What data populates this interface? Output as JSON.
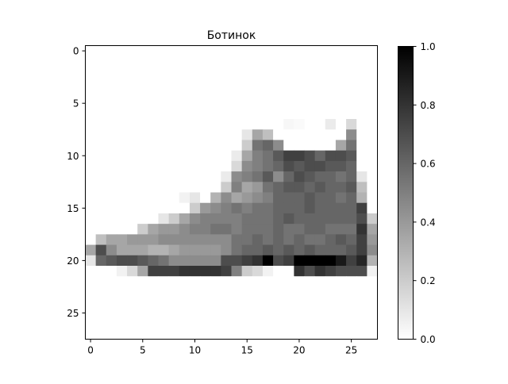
{
  "chart_data": {
    "type": "heatmap",
    "title": "Ботинок",
    "xlabel": "",
    "ylabel": "",
    "rows": 28,
    "cols": 28,
    "xlim": [
      -0.5,
      27.5
    ],
    "ylim": [
      27.5,
      -0.5
    ],
    "x_ticks": [
      0,
      5,
      10,
      15,
      20,
      25
    ],
    "y_ticks": [
      0,
      5,
      10,
      15,
      20,
      25
    ],
    "colormap": "gray_r",
    "colorbar": {
      "range": [
        0.0,
        1.0
      ],
      "ticks": [
        "0.0",
        "0.2",
        "0.4",
        "0.6",
        "0.8",
        "1.0"
      ],
      "low_color": "#ffffff",
      "high_color": "#000000"
    },
    "grid": false,
    "values": [
      [
        0,
        0,
        0,
        0,
        0,
        0,
        0,
        0,
        0,
        0,
        0,
        0,
        0,
        0,
        0,
        0,
        0,
        0,
        0,
        0,
        0,
        0,
        0,
        0,
        0,
        0,
        0,
        0
      ],
      [
        0,
        0,
        0,
        0,
        0,
        0,
        0,
        0,
        0,
        0,
        0,
        0,
        0,
        0,
        0,
        0,
        0,
        0,
        0,
        0,
        0,
        0,
        0,
        0,
        0,
        0,
        0,
        0
      ],
      [
        0,
        0,
        0,
        0,
        0,
        0,
        0,
        0,
        0,
        0,
        0,
        0,
        0,
        0,
        0,
        0,
        0,
        0,
        0,
        0,
        0,
        0,
        0,
        0,
        0,
        0,
        0,
        0
      ],
      [
        0,
        0,
        0,
        0,
        0,
        0,
        0,
        0,
        0,
        0,
        0,
        0,
        0,
        0,
        0,
        0,
        0,
        0,
        0,
        0,
        0,
        0,
        0,
        0,
        0,
        0,
        0,
        0
      ],
      [
        0,
        0,
        0,
        0,
        0,
        0,
        0,
        0,
        0,
        0,
        0,
        0,
        0,
        0,
        0,
        0,
        0,
        0,
        0,
        0,
        0,
        0,
        0,
        0,
        0,
        0,
        0,
        0
      ],
      [
        0,
        0,
        0,
        0,
        0,
        0,
        0,
        0,
        0,
        0,
        0,
        0,
        0,
        0,
        0,
        0,
        0,
        0,
        0,
        0,
        0,
        0,
        0,
        0,
        0,
        0,
        0,
        0
      ],
      [
        0,
        0,
        0,
        0,
        0,
        0,
        0,
        0,
        0,
        0,
        0,
        0,
        0,
        0,
        0,
        0,
        0,
        0,
        0,
        0,
        0,
        0,
        0,
        0,
        0,
        0,
        0,
        0
      ],
      [
        0,
        0,
        0,
        0,
        0,
        0,
        0,
        0,
        0,
        0,
        0,
        0,
        0,
        0,
        0,
        0,
        0,
        0,
        0,
        0.03,
        0.02,
        0,
        0,
        0.08,
        0,
        0.15,
        0,
        0
      ],
      [
        0,
        0,
        0,
        0,
        0,
        0,
        0,
        0,
        0,
        0,
        0,
        0,
        0,
        0,
        0,
        0.1,
        0.35,
        0.25,
        0,
        0,
        0,
        0,
        0,
        0,
        0,
        0.45,
        0,
        0
      ],
      [
        0,
        0,
        0,
        0,
        0,
        0,
        0,
        0,
        0,
        0,
        0,
        0,
        0,
        0,
        0,
        0.2,
        0.55,
        0.6,
        0.45,
        0,
        0,
        0,
        0,
        0,
        0.35,
        0.55,
        0,
        0
      ],
      [
        0,
        0,
        0,
        0,
        0,
        0,
        0,
        0,
        0,
        0,
        0,
        0,
        0,
        0,
        0.08,
        0.35,
        0.5,
        0.55,
        0.65,
        0.75,
        0.75,
        0.7,
        0.6,
        0.7,
        0.7,
        0.65,
        0,
        0
      ],
      [
        0,
        0,
        0,
        0,
        0,
        0,
        0,
        0,
        0,
        0,
        0,
        0,
        0,
        0,
        0.15,
        0.45,
        0.5,
        0.55,
        0.6,
        0.7,
        0.65,
        0.7,
        0.7,
        0.65,
        0.65,
        0.6,
        0,
        0
      ],
      [
        0,
        0,
        0,
        0,
        0,
        0,
        0,
        0,
        0,
        0,
        0,
        0,
        0,
        0.08,
        0.45,
        0.5,
        0.55,
        0.65,
        0.45,
        0.6,
        0.7,
        0.65,
        0.6,
        0.6,
        0.55,
        0.6,
        0.1,
        0
      ],
      [
        0,
        0,
        0,
        0,
        0,
        0,
        0,
        0,
        0,
        0,
        0,
        0,
        0,
        0.2,
        0.5,
        0.35,
        0.4,
        0.55,
        0.6,
        0.65,
        0.65,
        0.6,
        0.65,
        0.6,
        0.6,
        0.65,
        0.25,
        0
      ],
      [
        0,
        0,
        0,
        0,
        0,
        0,
        0,
        0,
        0,
        0.05,
        0.1,
        0,
        0.3,
        0.45,
        0.35,
        0.4,
        0.45,
        0.5,
        0.6,
        0.6,
        0.6,
        0.65,
        0.6,
        0.6,
        0.55,
        0.6,
        0.3,
        0
      ],
      [
        0,
        0,
        0,
        0,
        0,
        0,
        0,
        0,
        0,
        0,
        0.2,
        0.4,
        0.45,
        0.5,
        0.55,
        0.5,
        0.55,
        0.55,
        0.6,
        0.6,
        0.6,
        0.65,
        0.6,
        0.6,
        0.6,
        0.6,
        0.75,
        0
      ],
      [
        0,
        0,
        0,
        0,
        0,
        0,
        0,
        0.1,
        0.2,
        0.35,
        0.45,
        0.5,
        0.5,
        0.5,
        0.5,
        0.55,
        0.55,
        0.55,
        0.6,
        0.65,
        0.6,
        0.6,
        0.6,
        0.6,
        0.6,
        0.6,
        0.7,
        0.2
      ],
      [
        0,
        0,
        0,
        0,
        0,
        0.2,
        0.35,
        0.4,
        0.4,
        0.45,
        0.5,
        0.5,
        0.55,
        0.55,
        0.5,
        0.55,
        0.55,
        0.55,
        0.6,
        0.55,
        0.55,
        0.6,
        0.6,
        0.55,
        0.55,
        0.55,
        0.8,
        0.35
      ],
      [
        0,
        0.25,
        0.35,
        0.35,
        0.4,
        0.4,
        0.4,
        0.45,
        0.45,
        0.45,
        0.45,
        0.45,
        0.45,
        0.45,
        0.55,
        0.55,
        0.6,
        0.55,
        0.6,
        0.55,
        0.6,
        0.55,
        0.55,
        0.6,
        0.65,
        0.6,
        0.75,
        0.4
      ],
      [
        0.35,
        0.7,
        0.45,
        0.35,
        0.35,
        0.35,
        0.3,
        0.3,
        0.35,
        0.4,
        0.4,
        0.4,
        0.4,
        0.45,
        0.55,
        0.6,
        0.6,
        0.65,
        0.6,
        0.65,
        0.6,
        0.65,
        0.6,
        0.6,
        0.6,
        0.65,
        0.75,
        0.45
      ],
      [
        0.1,
        0.6,
        0.65,
        0.7,
        0.7,
        0.65,
        0.6,
        0.55,
        0.45,
        0.45,
        0.45,
        0.45,
        0.45,
        0.7,
        0.7,
        0.75,
        0.8,
        1.0,
        0.7,
        0.75,
        1.0,
        1.0,
        1.0,
        1.0,
        0.9,
        0.75,
        0.85,
        0.3
      ],
      [
        0,
        0,
        0,
        0.05,
        0.15,
        0.35,
        0.75,
        0.75,
        0.75,
        0.8,
        0.8,
        0.8,
        0.8,
        0.75,
        0.5,
        0.2,
        0.15,
        0.05,
        0,
        0,
        0.8,
        0.7,
        0.8,
        0.75,
        0.7,
        0.7,
        0.7,
        0.05
      ],
      [
        0,
        0,
        0,
        0,
        0,
        0,
        0,
        0,
        0,
        0,
        0,
        0,
        0,
        0,
        0,
        0,
        0,
        0,
        0,
        0,
        0,
        0,
        0,
        0,
        0,
        0,
        0,
        0
      ],
      [
        0,
        0,
        0,
        0,
        0,
        0,
        0,
        0,
        0,
        0,
        0,
        0,
        0,
        0,
        0,
        0,
        0,
        0,
        0,
        0,
        0,
        0,
        0,
        0,
        0,
        0,
        0,
        0
      ],
      [
        0,
        0,
        0,
        0,
        0,
        0,
        0,
        0,
        0,
        0,
        0,
        0,
        0,
        0,
        0,
        0,
        0,
        0,
        0,
        0,
        0,
        0,
        0,
        0,
        0,
        0,
        0,
        0
      ],
      [
        0,
        0,
        0,
        0,
        0,
        0,
        0,
        0,
        0,
        0,
        0,
        0,
        0,
        0,
        0,
        0,
        0,
        0,
        0,
        0,
        0,
        0,
        0,
        0,
        0,
        0,
        0,
        0
      ],
      [
        0,
        0,
        0,
        0,
        0,
        0,
        0,
        0,
        0,
        0,
        0,
        0,
        0,
        0,
        0,
        0,
        0,
        0,
        0,
        0,
        0,
        0,
        0,
        0,
        0,
        0,
        0,
        0
      ],
      [
        0,
        0,
        0,
        0,
        0,
        0,
        0,
        0,
        0,
        0,
        0,
        0,
        0,
        0,
        0,
        0,
        0,
        0,
        0,
        0,
        0,
        0,
        0,
        0,
        0,
        0,
        0,
        0
      ]
    ]
  }
}
